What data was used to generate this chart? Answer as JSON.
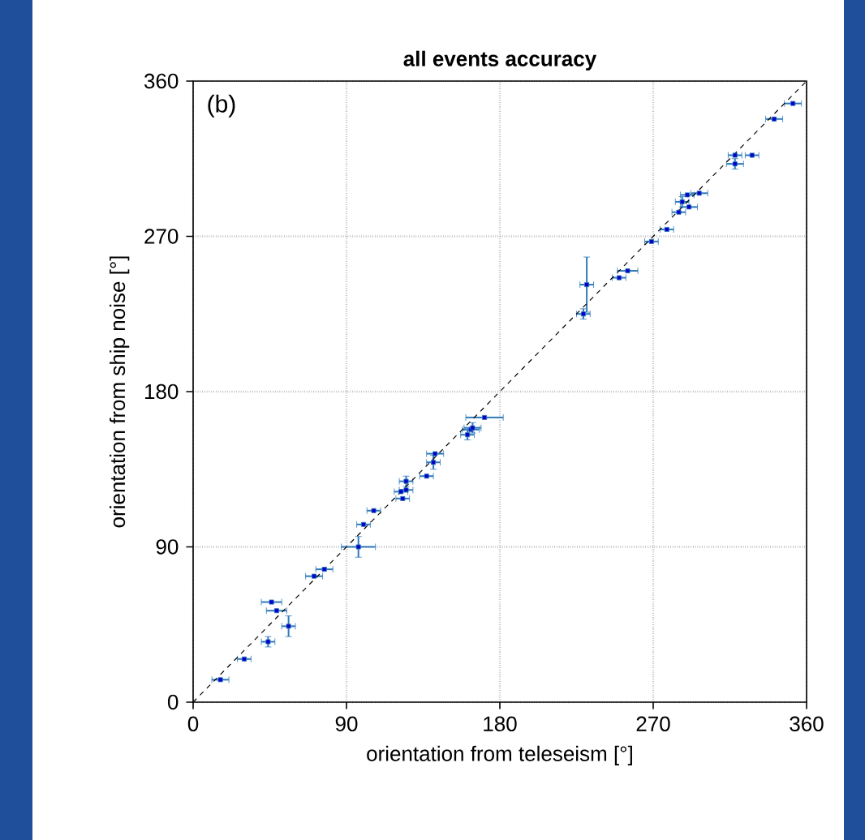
{
  "chart_data": {
    "type": "scatter",
    "title": "all events accuracy",
    "xlabel": "orientation from teleseism [°]",
    "ylabel": "orientation from ship noise [°]",
    "annotations": [
      "(b)"
    ],
    "xlim": [
      0,
      360
    ],
    "ylim": [
      0,
      360
    ],
    "xticks": [
      0,
      90,
      180,
      270,
      360
    ],
    "yticks": [
      0,
      90,
      180,
      270,
      360
    ],
    "grid": true,
    "marker": "square",
    "series": [
      {
        "color": "#2f7ab9",
        "x": [
          16,
          30,
          44,
          46,
          49,
          56,
          71,
          77,
          97,
          100,
          106,
          122,
          123,
          125,
          125,
          137,
          141,
          142,
          161,
          163,
          164,
          171,
          229,
          231,
          250,
          255,
          269,
          278,
          285,
          287,
          291,
          290,
          297,
          318,
          318,
          328,
          341,
          352
        ],
        "values": [
          13,
          25,
          35,
          58,
          53,
          44,
          73,
          77,
          90,
          103,
          111,
          122,
          118,
          123,
          128,
          131,
          139,
          144,
          155,
          158,
          159,
          165,
          225,
          242,
          246,
          250,
          267,
          274,
          284,
          290,
          287,
          294,
          295,
          312,
          317,
          317,
          338,
          347
        ],
        "xerrors": [
          5,
          4,
          4,
          6,
          6,
          4,
          5,
          5,
          10,
          4,
          4,
          4,
          4,
          4,
          4,
          4,
          4,
          5,
          4,
          5,
          5,
          11,
          4,
          4,
          4,
          6,
          4,
          4,
          4,
          4,
          5,
          4,
          5,
          5,
          4,
          4,
          5,
          5
        ],
        "errors": [
          null,
          null,
          3,
          null,
          null,
          6,
          null,
          null,
          6,
          null,
          null,
          null,
          null,
          null,
          3,
          null,
          4,
          null,
          3,
          null,
          3,
          null,
          3,
          16,
          null,
          null,
          null,
          null,
          null,
          3,
          null,
          null,
          null,
          3,
          null,
          null,
          null,
          null
        ]
      },
      {
        "type": "line",
        "color": "#000000",
        "line_style": "dashed",
        "marker": "none",
        "x": [
          0,
          360
        ],
        "values": [
          0,
          360
        ]
      }
    ]
  }
}
